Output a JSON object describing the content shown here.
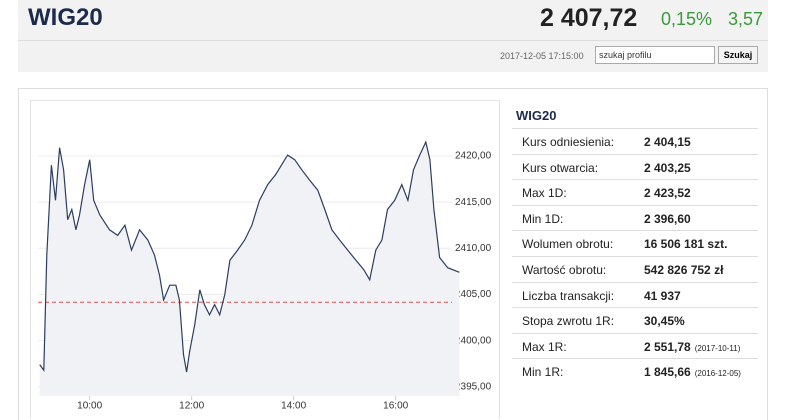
{
  "header": {
    "title": "WIG20",
    "price": "2 407,72",
    "change_pct": "0,15%",
    "change": "3,57",
    "timestamp": "2017-12-05 17:15:00",
    "search_placeholder": "szukaj profilu",
    "search_button": "Szukaj"
  },
  "chart_data": {
    "type": "line",
    "color": "#2c3e5e",
    "fill": "#f1f2f5",
    "grid": true,
    "reference": 2404.15,
    "reference_color": "#e05050",
    "xlim": [
      8.85,
      17.3
    ],
    "xticks": [
      {
        "value": 10,
        "label": "10:00"
      },
      {
        "value": 12,
        "label": "12:00"
      },
      {
        "value": 14,
        "label": "14:00"
      },
      {
        "value": 16,
        "label": "16:00"
      }
    ],
    "ylim": [
      2394,
      2425.5
    ],
    "yticks": [
      {
        "value": 2395,
        "label": "2395,00"
      },
      {
        "value": 2400,
        "label": "2400,00"
      },
      {
        "value": 2405,
        "label": "2405,00"
      },
      {
        "value": 2410,
        "label": "2410,00"
      },
      {
        "value": 2415,
        "label": "2415,00"
      },
      {
        "value": 2420,
        "label": "2420,00"
      }
    ],
    "x": [
      9.02,
      9.1,
      9.16,
      9.25,
      9.33,
      9.41,
      9.49,
      9.57,
      9.65,
      9.73,
      9.8,
      9.9,
      10.0,
      10.08,
      10.2,
      10.39,
      10.55,
      10.69,
      10.82,
      10.98,
      11.14,
      11.27,
      11.37,
      11.45,
      11.57,
      11.69,
      11.76,
      11.84,
      11.9,
      11.96,
      12.06,
      12.16,
      12.25,
      12.35,
      12.45,
      12.55,
      12.65,
      12.75,
      12.9,
      13.04,
      13.18,
      13.33,
      13.49,
      13.65,
      13.76,
      13.88,
      14.02,
      14.16,
      14.31,
      14.47,
      14.61,
      14.75,
      14.9,
      15.06,
      15.22,
      15.37,
      15.49,
      15.61,
      15.73,
      15.84,
      15.98,
      16.12,
      16.24,
      16.35,
      16.47,
      16.59,
      16.67,
      16.75,
      16.86,
      17.02,
      17.25
    ],
    "values": [
      2397.4,
      2396.8,
      2409.3,
      2419.0,
      2415.2,
      2420.9,
      2418.5,
      2413.1,
      2414.2,
      2412.0,
      2413.6,
      2416.9,
      2419.6,
      2415.2,
      2413.6,
      2412.0,
      2411.4,
      2412.5,
      2409.8,
      2412.0,
      2410.9,
      2409.3,
      2407.1,
      2404.4,
      2406.0,
      2406.0,
      2404.4,
      2398.5,
      2396.6,
      2398.8,
      2401.7,
      2405.5,
      2403.9,
      2402.8,
      2403.9,
      2402.8,
      2405.0,
      2408.7,
      2409.8,
      2410.9,
      2412.5,
      2415.2,
      2416.9,
      2418.0,
      2419.0,
      2420.1,
      2419.6,
      2418.5,
      2417.4,
      2416.3,
      2414.2,
      2412.0,
      2410.9,
      2409.8,
      2408.7,
      2407.7,
      2406.6,
      2409.8,
      2410.9,
      2414.2,
      2415.2,
      2416.9,
      2415.2,
      2418.5,
      2420.1,
      2421.5,
      2419.6,
      2414.2,
      2409.0,
      2407.9,
      2407.4
    ]
  },
  "table": {
    "title": "WIG20",
    "rows": [
      {
        "label": "Kurs odniesienia:",
        "value": "2 404,15"
      },
      {
        "label": "Kurs otwarcia:",
        "value": "2 403,25"
      },
      {
        "label": "Max 1D:",
        "value": "2 423,52"
      },
      {
        "label": "Min 1D:",
        "value": "2 396,60"
      },
      {
        "label": "Wolumen obrotu:",
        "value": "16 506 181 szt."
      },
      {
        "label": "Wartość obrotu:",
        "value": "542 826 752 zł"
      },
      {
        "label": "Liczba transakcji:",
        "value": "41 937"
      },
      {
        "label": "Stopa zwrotu 1R:",
        "value": "30,45%"
      },
      {
        "label": "Max 1R:",
        "value": "2 551,78",
        "note": "(2017-10-11)"
      },
      {
        "label": "Min 1R:",
        "value": "1 845,66",
        "note": "(2016-12-05)"
      }
    ]
  }
}
